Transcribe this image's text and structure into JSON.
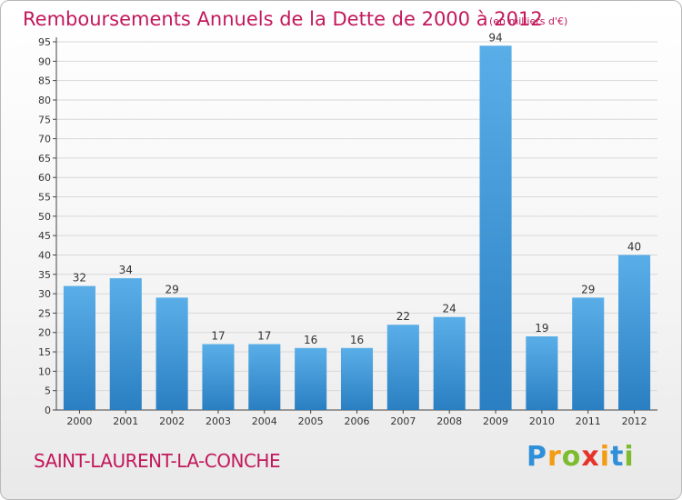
{
  "header": {
    "title": "Remboursements Annuels de la Dette de 2000 à 2012",
    "subtitle": "(en milliers d'€)"
  },
  "footer": {
    "commune": "SAINT-LAURENT-LA-CONCHE",
    "logo_text": "Proxiti"
  },
  "colors": {
    "title": "#c2185b",
    "bar_top": "#5aaee8",
    "bar_bottom": "#2a7fc2",
    "axis": "#444444",
    "grid": "#d8d8d8"
  },
  "chart_data": {
    "type": "bar",
    "title": "Remboursements Annuels de la Dette de 2000 à 2012",
    "xlabel": "",
    "ylabel": "",
    "categories": [
      "2000",
      "2001",
      "2002",
      "2003",
      "2004",
      "2005",
      "2006",
      "2007",
      "2008",
      "2009",
      "2010",
      "2011",
      "2012"
    ],
    "values": [
      32,
      34,
      29,
      17,
      17,
      16,
      16,
      22,
      24,
      94,
      19,
      29,
      40
    ],
    "ylim": [
      0,
      95
    ],
    "ytick_step": 5,
    "grid": true,
    "data_labels": true
  }
}
